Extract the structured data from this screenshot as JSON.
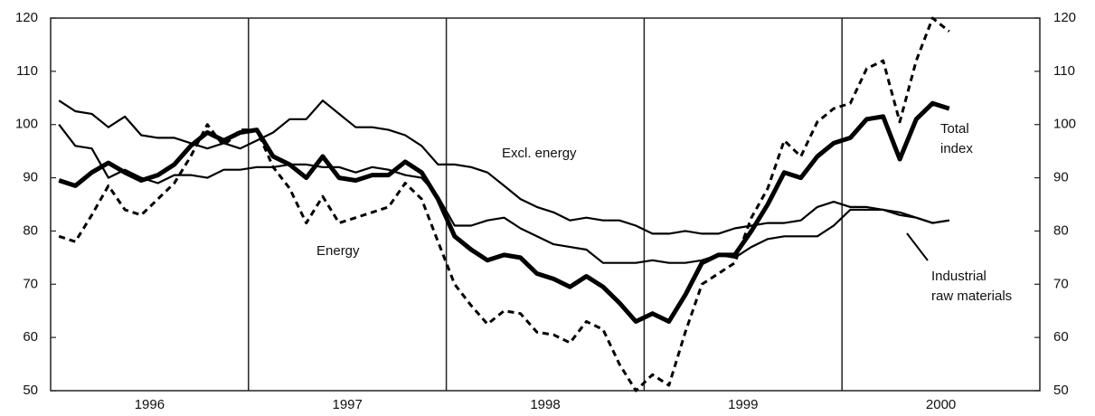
{
  "chart_data": {
    "type": "line",
    "x": [
      1996.042,
      1996.125,
      1996.208,
      1996.292,
      1996.375,
      1996.458,
      1996.542,
      1996.625,
      1996.708,
      1996.792,
      1996.875,
      1996.958,
      1997.042,
      1997.125,
      1997.208,
      1997.292,
      1997.375,
      1997.458,
      1997.542,
      1997.625,
      1997.708,
      1997.792,
      1997.875,
      1997.958,
      1998.042,
      1998.125,
      1998.208,
      1998.292,
      1998.375,
      1998.458,
      1998.542,
      1998.625,
      1998.708,
      1998.792,
      1998.875,
      1998.958,
      1999.042,
      1999.125,
      1999.208,
      1999.292,
      1999.375,
      1999.458,
      1999.542,
      1999.625,
      1999.708,
      1999.792,
      1999.875,
      1999.958,
      2000.042,
      2000.125,
      2000.208,
      2000.292,
      2000.375,
      2000.458,
      2000.542
    ],
    "series": [
      {
        "name": "Total index",
        "color": "#000000",
        "width": 5,
        "dash": false,
        "values": [
          89.5,
          88.5,
          91,
          92.8,
          91,
          89.5,
          90.5,
          92.5,
          96,
          98.5,
          97,
          98.5,
          99,
          94,
          92.5,
          90,
          94,
          90,
          89.5,
          90.5,
          90.5,
          93,
          91,
          86,
          79,
          76.5,
          74.5,
          75.5,
          75,
          72,
          71,
          69.5,
          71.5,
          69.5,
          66.5,
          63,
          64.5,
          63,
          68,
          74,
          75.5,
          75.5,
          80,
          85,
          91,
          90,
          94,
          96.5,
          97.5,
          101,
          101.5,
          93.5,
          101,
          104,
          103
        ]
      },
      {
        "name": "Energy",
        "color": "#000000",
        "width": 3,
        "dash": true,
        "values": [
          79,
          78,
          83,
          88.5,
          84,
          83,
          86,
          89,
          94,
          100,
          96,
          99,
          99,
          92,
          88,
          81.5,
          86.5,
          81.5,
          82.5,
          83.5,
          84.5,
          89,
          86,
          78,
          70,
          66,
          62.5,
          65,
          64.5,
          61,
          60.5,
          59,
          63,
          61.5,
          55,
          50,
          53,
          51,
          61,
          70,
          72,
          74,
          82.5,
          88,
          97,
          94,
          100.5,
          103,
          104,
          110.5,
          112,
          100.5,
          112,
          120,
          117.5
        ]
      },
      {
        "name": "Excl. energy",
        "color": "#000000",
        "width": 2.2,
        "dash": false,
        "values": [
          104.5,
          102.5,
          102,
          99.5,
          101.5,
          98,
          97.5,
          97.5,
          96.5,
          95.5,
          96.5,
          95.5,
          97,
          98.5,
          101,
          101,
          104.5,
          102,
          99.5,
          99.5,
          99,
          98,
          96,
          92.5,
          92.5,
          92,
          91,
          88.5,
          86,
          84.5,
          83.5,
          82,
          82.5,
          82,
          82,
          81,
          79.5,
          79.5,
          80,
          79.5,
          79.5,
          80.5,
          81,
          81.5,
          81.5,
          82,
          84.5,
          85.5,
          84.5,
          84.5,
          84,
          83.5,
          82.5,
          81.5,
          82
        ]
      },
      {
        "name": "Industrial raw materials",
        "color": "#000000",
        "width": 2.2,
        "dash": false,
        "values": [
          100,
          96,
          95.5,
          90,
          91.5,
          90,
          89,
          90.5,
          90.5,
          90,
          91.5,
          91.5,
          92,
          92,
          92.5,
          92.5,
          92,
          92,
          91,
          92,
          91.5,
          90.5,
          90,
          86.5,
          81,
          81,
          82,
          82.5,
          80.5,
          79,
          77.5,
          77,
          76.5,
          74,
          74,
          74,
          74.5,
          74,
          74,
          74.5,
          75.5,
          75,
          77,
          78.5,
          79,
          79,
          79,
          81,
          84,
          84,
          84,
          83,
          82.5,
          81.5,
          82
        ]
      }
    ],
    "annotations": [
      {
        "lines": [
          "Excl. energy"
        ]
      },
      {
        "lines": [
          "Energy"
        ]
      },
      {
        "lines": [
          "Total",
          "index"
        ]
      },
      {
        "lines": [
          "Industrial",
          "raw materials"
        ]
      }
    ],
    "xlim": [
      1996,
      2001
    ],
    "xticks": [
      {
        "value": 1996.5,
        "label": "1996"
      },
      {
        "value": 1997.5,
        "label": "1997"
      },
      {
        "value": 1998.5,
        "label": "1998"
      },
      {
        "value": 1999.5,
        "label": "1999"
      },
      {
        "value": 2000.5,
        "label": "2000"
      }
    ],
    "separators": [
      1997,
      1998,
      1999,
      2000
    ],
    "ylim": [
      50,
      120
    ],
    "yticks": [
      50,
      60,
      70,
      80,
      90,
      100,
      110,
      120
    ],
    "y2lim": [
      50,
      120
    ],
    "y2ticks": [
      50,
      60,
      70,
      80,
      90,
      100,
      110,
      120
    ],
    "grid": false
  }
}
